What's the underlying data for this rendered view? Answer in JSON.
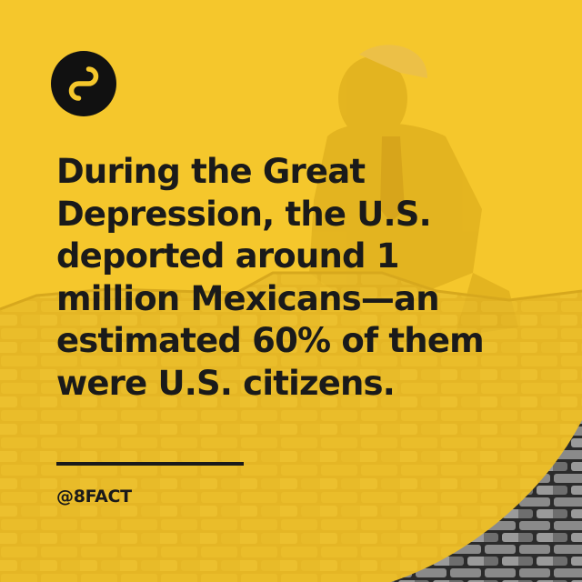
{
  "post": {
    "headline": "During the Great Depression, the U.S. deported around 1 million Mexicans—an estimated 60% of them were U.S. citizens.",
    "handle": "@8FACT"
  },
  "logo": {
    "icon": "infinity-8-icon",
    "background_color": "#111111",
    "glyph_color": "#f5c72c"
  },
  "colors": {
    "background": "#f5c72c",
    "text": "#1a1a1a"
  }
}
